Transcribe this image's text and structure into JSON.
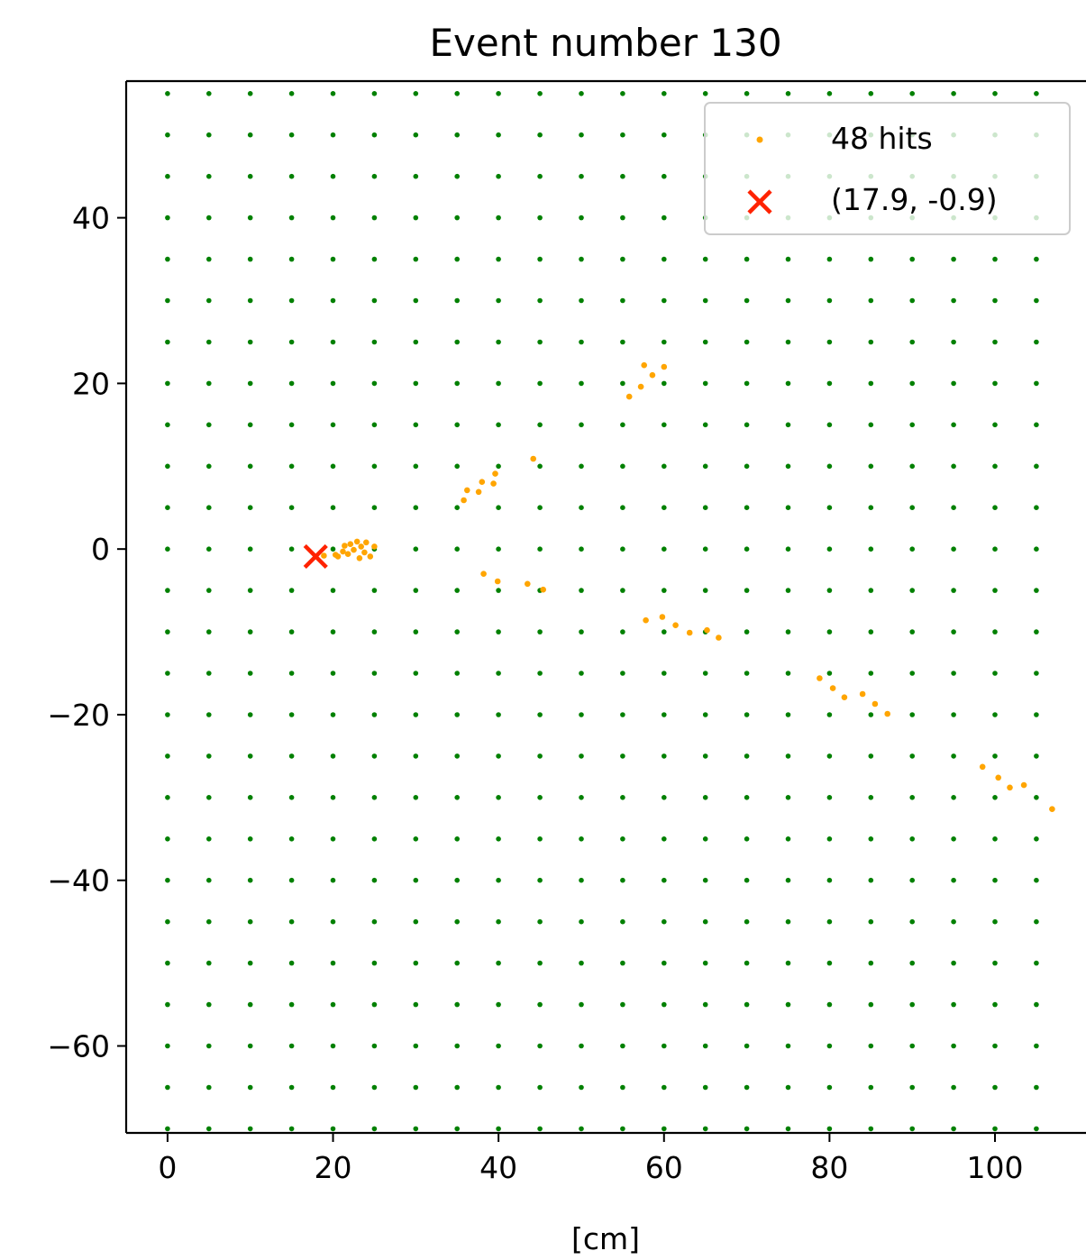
{
  "chart_data": {
    "type": "scatter",
    "title": "Event number 130",
    "xlabel": "[cm]",
    "ylabel": "",
    "xlim": [
      -5,
      111
    ],
    "ylim": [
      -70.5,
      56.5
    ],
    "xticks": [
      0,
      20,
      40,
      60,
      80,
      100
    ],
    "yticks": [
      -60,
      -40,
      -20,
      0,
      20,
      40
    ],
    "tick_labels_x": [
      "0",
      "20",
      "40",
      "60",
      "80",
      "100"
    ],
    "tick_labels_y": [
      "−60",
      "−40",
      "−20",
      "0",
      "20",
      "40"
    ],
    "grid": false,
    "legend_position": "top-right",
    "detector_grid": {
      "color": "#008000",
      "x_start": 0,
      "x_end": 105,
      "x_step": 5,
      "y_start": -70,
      "y_end": 55,
      "y_step": 5
    },
    "series": [
      {
        "name": "48 hits",
        "color": "#FFA500",
        "marker": "dot",
        "points": [
          [
            20.3,
            -0.7
          ],
          [
            20.6,
            -0.9
          ],
          [
            21.2,
            -0.3
          ],
          [
            21.4,
            0.4
          ],
          [
            21.8,
            -0.6
          ],
          [
            22.1,
            0.6
          ],
          [
            22.5,
            -0.1
          ],
          [
            22.9,
            0.9
          ],
          [
            23.2,
            -1.1
          ],
          [
            23.4,
            0.3
          ],
          [
            23.8,
            -0.4
          ],
          [
            24.0,
            0.8
          ],
          [
            24.5,
            -0.9
          ],
          [
            25.0,
            0.3
          ],
          [
            35.8,
            5.9
          ],
          [
            36.2,
            7.1
          ],
          [
            37.6,
            6.9
          ],
          [
            38.0,
            8.1
          ],
          [
            39.4,
            7.9
          ],
          [
            39.6,
            9.1
          ],
          [
            44.2,
            10.9
          ],
          [
            38.2,
            -3.0
          ],
          [
            39.9,
            -3.9
          ],
          [
            43.5,
            -4.2
          ],
          [
            45.4,
            -4.9
          ],
          [
            55.8,
            18.4
          ],
          [
            57.2,
            19.6
          ],
          [
            57.6,
            22.2
          ],
          [
            58.6,
            21.0
          ],
          [
            60.0,
            22.0
          ],
          [
            57.8,
            -8.6
          ],
          [
            59.8,
            -8.2
          ],
          [
            61.4,
            -9.2
          ],
          [
            63.1,
            -10.1
          ],
          [
            65.2,
            -9.8
          ],
          [
            66.6,
            -10.7
          ],
          [
            78.8,
            -15.6
          ],
          [
            80.4,
            -16.8
          ],
          [
            81.8,
            -17.9
          ],
          [
            84.0,
            -17.5
          ],
          [
            85.5,
            -18.7
          ],
          [
            87.0,
            -19.9
          ],
          [
            98.5,
            -26.3
          ],
          [
            100.4,
            -27.6
          ],
          [
            101.8,
            -28.8
          ],
          [
            103.5,
            -28.5
          ],
          [
            106.9,
            -31.4
          ],
          [
            18.9,
            -0.8
          ]
        ]
      },
      {
        "name": "(17.9, -0.9)",
        "color": "#FF2200",
        "marker": "x",
        "points": [
          [
            17.9,
            -0.9
          ]
        ]
      }
    ]
  }
}
